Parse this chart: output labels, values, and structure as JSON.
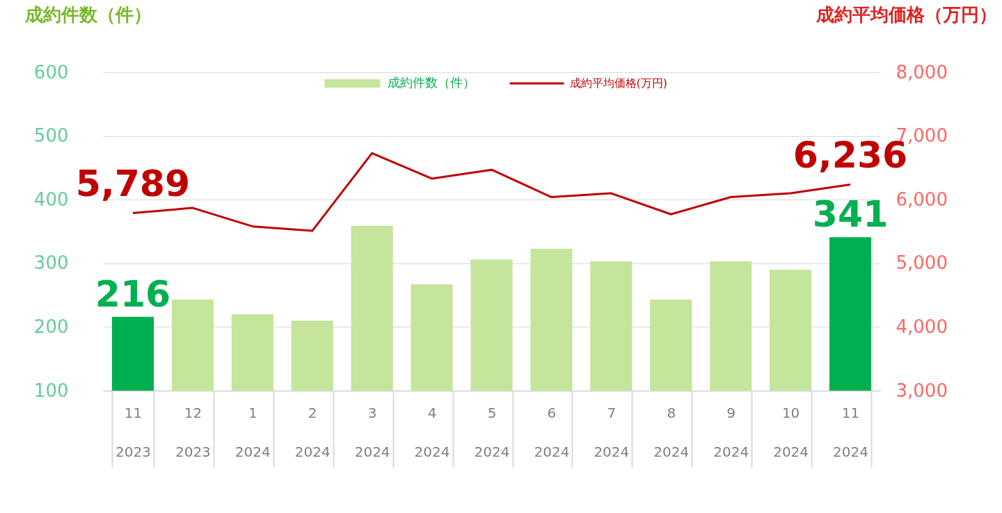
{
  "chart_data": {
    "type": "bar",
    "ylabel": "成約件数（件）",
    "y2label": "成約平均価格（万円）",
    "categories": [
      "11\n2023",
      "12\n2023",
      "1\n2024",
      "2\n2024",
      "3\n2024",
      "4\n2024",
      "5\n2024",
      "6\n2024",
      "7\n2024",
      "8\n2024",
      "9\n2024",
      "10\n2024",
      "11\n2024"
    ],
    "series": [
      {
        "name": "成約件数（件）",
        "color": "#c4e59b",
        "colors": [
          "#00b050",
          "#c4e59b",
          "#c4e59b",
          "#c4e59b",
          "#c4e59b",
          "#c4e59b",
          "#c4e59b",
          "#c4e59b",
          "#c4e59b",
          "#c4e59b",
          "#c4e59b",
          "#c4e59b",
          "#00b050"
        ],
        "values": [
          216,
          243,
          220,
          210,
          359,
          267,
          306,
          323,
          303,
          243,
          303,
          290,
          341
        ],
        "value_labels": [
          "216",
          null,
          null,
          null,
          null,
          null,
          null,
          null,
          null,
          null,
          null,
          null,
          "341"
        ]
      },
      {
        "name": "成約平均価格(万円)",
        "type": "line",
        "axis": "y2",
        "color": "#c00000",
        "values": [
          5789,
          5870,
          5580,
          5510,
          6730,
          6330,
          6470,
          6040,
          6100,
          5770,
          6040,
          6100,
          6236
        ],
        "value_labels": [
          "5,789",
          null,
          null,
          null,
          null,
          null,
          null,
          null,
          null,
          null,
          null,
          null,
          "6,236"
        ]
      }
    ],
    "ylim": [
      100,
      600
    ],
    "yticks": [
      100,
      200,
      300,
      400,
      500,
      600
    ],
    "y2lim": [
      3000,
      8000
    ],
    "y2ticks": [
      {
        "value": 3000,
        "label": "3,000"
      },
      {
        "value": 4000,
        "label": "4,000"
      },
      {
        "value": 5000,
        "label": "5,000"
      },
      {
        "value": 6000,
        "label": "6,000"
      },
      {
        "value": 7000,
        "label": "7,000"
      },
      {
        "value": 8000,
        "label": "8,000"
      }
    ],
    "grid": "y",
    "legend": "top"
  }
}
